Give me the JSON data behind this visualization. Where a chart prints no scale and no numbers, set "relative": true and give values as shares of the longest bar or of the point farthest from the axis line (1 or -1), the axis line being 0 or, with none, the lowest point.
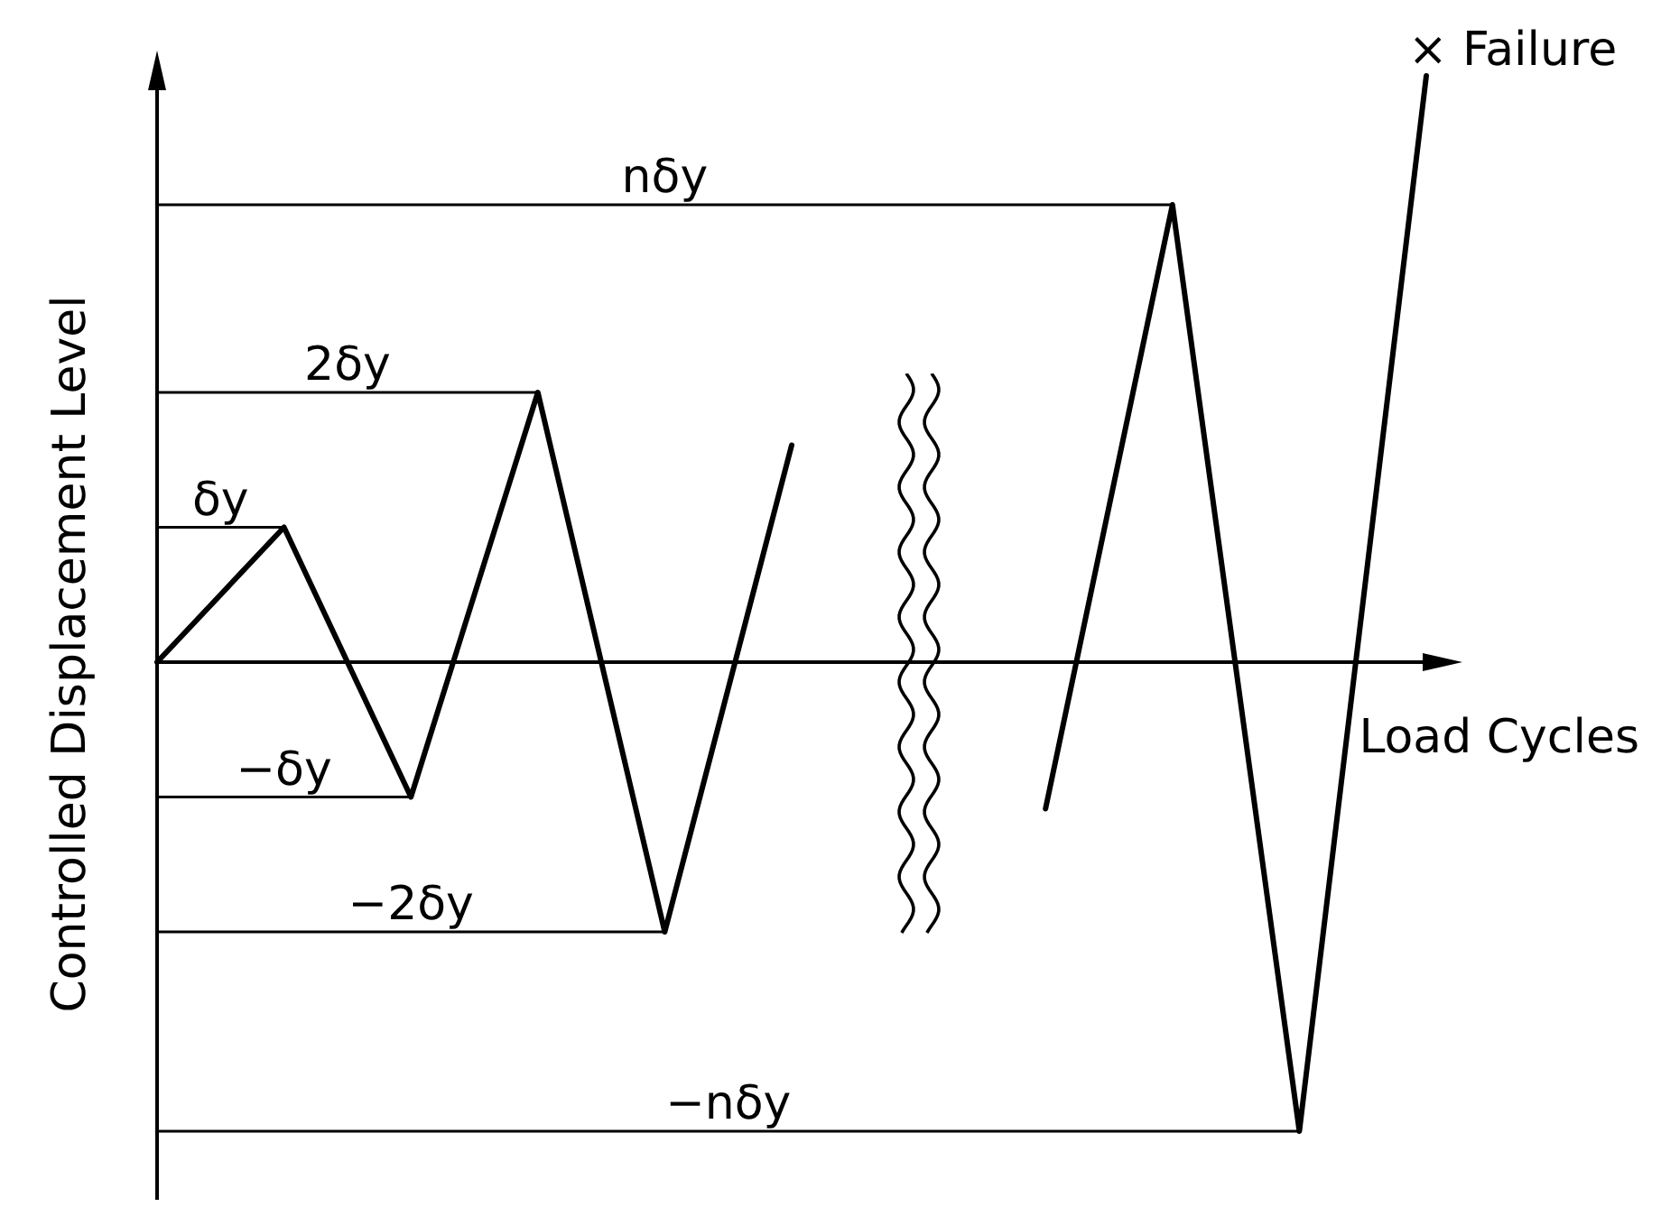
{
  "chart_data": {
    "type": "line",
    "relative": true,
    "xlabel": "Load Cycles",
    "ylabel": "Controlled Displacement Level",
    "categories": [
      null,
      null,
      null,
      null,
      null,
      null,
      null,
      null,
      null,
      null,
      null
    ],
    "series": [
      {
        "color": "#000000",
        "values": [
          0,
          0.23,
          -0.23,
          0.46,
          -0.46,
          0.37,
          null,
          -0.25,
          0.78,
          -0.8,
          1
        ]
      }
    ],
    "ref_lines": [
      {
        "axis": "y",
        "value": 0.78,
        "label": "nδy",
        "color": "#000000"
      },
      {
        "axis": "y",
        "value": 0.46,
        "label": "2δy",
        "color": "#000000"
      },
      {
        "axis": "y",
        "value": 0.23,
        "label": "δy",
        "color": "#000000"
      },
      {
        "axis": "y",
        "value": -0.23,
        "label": "−δy",
        "color": "#000000"
      },
      {
        "axis": "y",
        "value": -0.46,
        "label": "−2δy",
        "color": "#000000"
      },
      {
        "axis": "y",
        "value": -0.8,
        "label": "−nδy",
        "color": "#000000"
      }
    ],
    "annotations": [
      "× Failure"
    ]
  }
}
